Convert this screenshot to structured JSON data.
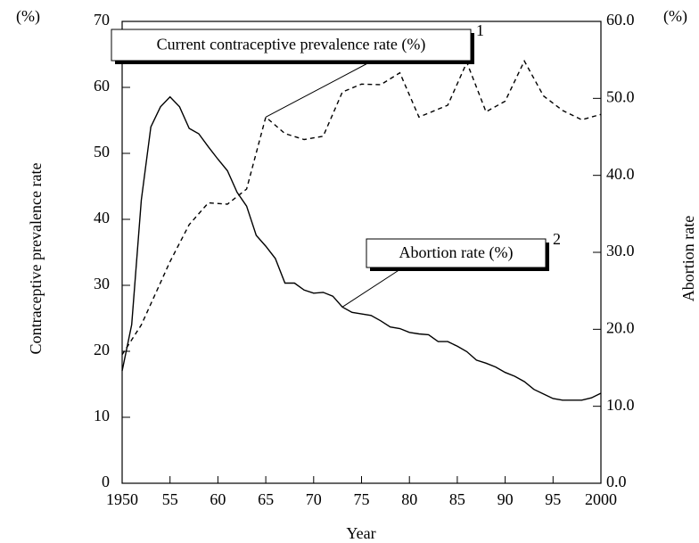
{
  "chart_data": {
    "type": "line",
    "xlabel": "Year",
    "ylabel": "Contraceptive prevalence rate",
    "y2label": "Abortion rate",
    "yunit": "(%)",
    "y2unit": "(%)",
    "xlim": [
      1950,
      2000
    ],
    "xticks": [
      1950,
      {
        "value": 1955,
        "label": "55"
      },
      {
        "value": 1960,
        "label": "60"
      },
      {
        "value": 1965,
        "label": "65"
      },
      {
        "value": 1970,
        "label": "70"
      },
      {
        "value": 1975,
        "label": "75"
      },
      {
        "value": 1980,
        "label": "80"
      },
      {
        "value": 1985,
        "label": "85"
      },
      {
        "value": 1990,
        "label": "90"
      },
      {
        "value": 1995,
        "label": "95"
      },
      2000
    ],
    "ylim": [
      0,
      70
    ],
    "yticks": [
      0,
      10,
      20,
      30,
      40,
      50,
      60,
      70
    ],
    "y2lim": [
      0,
      60
    ],
    "y2ticks": [
      {
        "value": 0,
        "label": "0.0"
      },
      {
        "value": 10,
        "label": "10.0"
      },
      {
        "value": 20,
        "label": "20.0"
      },
      {
        "value": 30,
        "label": "30.0"
      },
      {
        "value": 40,
        "label": "40.0"
      },
      {
        "value": 50,
        "label": "50.0"
      },
      {
        "value": 60,
        "label": "60.0"
      }
    ],
    "series": [
      {
        "name": "Current contraceptive prevalence rate (%)",
        "footnote": "1",
        "color": "#000000",
        "dashed": true,
        "x": [
          1950,
          1952,
          1955,
          1957,
          1959,
          1961,
          1963,
          1965,
          1967,
          1969,
          1971,
          1973,
          1975,
          1977,
          1979,
          1981,
          1984,
          1986,
          1988,
          1990,
          1992,
          1994,
          1996,
          1998,
          2000
        ],
        "values": [
          19.5,
          24,
          33.6,
          39.2,
          42.5,
          42.3,
          44.6,
          55.5,
          53.0,
          52.1,
          52.6,
          59.3,
          60.5,
          60.4,
          62.2,
          55.5,
          57.3,
          63.8,
          56.3,
          57.9,
          64.0,
          58.7,
          56.5,
          55.1,
          55.9
        ]
      },
      {
        "name": "Abortion rate (%)",
        "footnote": "2",
        "color": "#000000",
        "dashed": false,
        "axis": "y2",
        "x": [
          1950,
          1951,
          1952,
          1953,
          1954,
          1955,
          1956,
          1957,
          1958,
          1959,
          1960,
          1961,
          1962,
          1963,
          1964,
          1965,
          1966,
          1967,
          1968,
          1969,
          1970,
          1971,
          1972,
          1973,
          1974,
          1975,
          1976,
          1977,
          1978,
          1979,
          1980,
          1981,
          1982,
          1983,
          1984,
          1985,
          1986,
          1987,
          1988,
          1989,
          1990,
          1991,
          1992,
          1993,
          1994,
          1995,
          1996,
          1997,
          1998,
          1999,
          2000
        ],
        "values": [
          14.6,
          20.6,
          36.8,
          46.3,
          48.9,
          50.2,
          48.9,
          46.1,
          45.4,
          43.7,
          42.1,
          40.6,
          37.8,
          36.0,
          32.2,
          30.8,
          29.2,
          26.0,
          26.0,
          25.1,
          24.7,
          24.8,
          24.3,
          22.9,
          22.2,
          22.0,
          21.8,
          21.1,
          20.3,
          20.1,
          19.6,
          19.4,
          19.3,
          18.4,
          18.4,
          17.8,
          17.1,
          16.0,
          15.6,
          15.1,
          14.4,
          13.9,
          13.2,
          12.2,
          11.6,
          11.0,
          10.8,
          10.8,
          10.8,
          11.1,
          11.7
        ]
      }
    ]
  }
}
